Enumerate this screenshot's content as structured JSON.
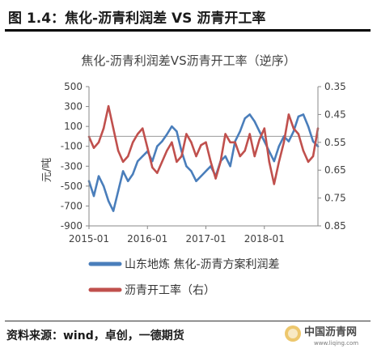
{
  "header": {
    "title": "图 1.4：焦化-沥青利润差 VS 沥青开工率"
  },
  "chart_data": {
    "type": "line",
    "title": "焦化-沥青利润差VS沥青开工率（逆序）",
    "ylabel": "元/吨",
    "ylim": [
      -900,
      500
    ],
    "yticks": [
      "500",
      "300",
      "100",
      "-100",
      "-300",
      "-500",
      "-700",
      "-900"
    ],
    "y2lim": [
      0.35,
      0.85
    ],
    "y2_inverted": true,
    "y2ticks": [
      "0.35",
      "0.45",
      "0.55",
      "0.65",
      "0.75",
      "0.85"
    ],
    "xlim": [
      "2015-01",
      "2018-12"
    ],
    "xticks": [
      "2015-01",
      "2016-01",
      "2017-01",
      "2018-01"
    ],
    "legend_position": "bottom",
    "series": [
      {
        "name": "山东地炼 焦化-沥青方案利润差",
        "axis": "left",
        "color": "#4a7ebb",
        "x": [
          "2015-01",
          "2015-02",
          "2015-03",
          "2015-04",
          "2015-05",
          "2015-06",
          "2015-07",
          "2015-08",
          "2015-09",
          "2015-10",
          "2015-11",
          "2015-12",
          "2016-01",
          "2016-02",
          "2016-03",
          "2016-04",
          "2016-05",
          "2016-06",
          "2016-07",
          "2016-08",
          "2016-09",
          "2016-10",
          "2016-11",
          "2016-12",
          "2017-01",
          "2017-02",
          "2017-03",
          "2017-04",
          "2017-05",
          "2017-06",
          "2017-07",
          "2017-08",
          "2017-09",
          "2017-10",
          "2017-11",
          "2017-12",
          "2018-01",
          "2018-02",
          "2018-03",
          "2018-04",
          "2018-05",
          "2018-06",
          "2018-07",
          "2018-08",
          "2018-09",
          "2018-10",
          "2018-11",
          "2018-12"
        ],
        "values": [
          -450,
          -600,
          -400,
          -500,
          -650,
          -750,
          -550,
          -350,
          -450,
          -380,
          -250,
          -200,
          -150,
          -250,
          -100,
          -50,
          20,
          100,
          50,
          -150,
          -300,
          -350,
          -450,
          -400,
          -350,
          -300,
          -400,
          -250,
          -200,
          -300,
          -50,
          50,
          180,
          220,
          150,
          50,
          -50,
          -150,
          -250,
          -100,
          0,
          -50,
          50,
          200,
          220,
          100,
          -50,
          -100
        ]
      },
      {
        "name": "沥青开工率（右）",
        "axis": "right",
        "color": "#c0504d",
        "x": [
          "2015-01",
          "2015-02",
          "2015-03",
          "2015-04",
          "2015-05",
          "2015-06",
          "2015-07",
          "2015-08",
          "2015-09",
          "2015-10",
          "2015-11",
          "2015-12",
          "2016-01",
          "2016-02",
          "2016-03",
          "2016-04",
          "2016-05",
          "2016-06",
          "2016-07",
          "2016-08",
          "2016-09",
          "2016-10",
          "2016-11",
          "2016-12",
          "2017-01",
          "2017-02",
          "2017-03",
          "2017-04",
          "2017-05",
          "2017-06",
          "2017-07",
          "2017-08",
          "2017-09",
          "2017-10",
          "2017-11",
          "2017-12",
          "2018-01",
          "2018-02",
          "2018-03",
          "2018-04",
          "2018-05",
          "2018-06",
          "2018-07",
          "2018-08",
          "2018-09",
          "2018-10",
          "2018-11",
          "2018-12"
        ],
        "values": [
          0.53,
          0.57,
          0.55,
          0.5,
          0.42,
          0.5,
          0.58,
          0.62,
          0.6,
          0.55,
          0.52,
          0.5,
          0.57,
          0.64,
          0.66,
          0.62,
          0.58,
          0.55,
          0.62,
          0.6,
          0.52,
          0.55,
          0.6,
          0.56,
          0.55,
          0.62,
          0.68,
          0.62,
          0.52,
          0.55,
          0.55,
          0.6,
          0.58,
          0.52,
          0.6,
          0.54,
          0.5,
          0.62,
          0.7,
          0.62,
          0.55,
          0.45,
          0.5,
          0.52,
          0.58,
          0.62,
          0.6,
          0.5
        ]
      }
    ]
  },
  "footer": {
    "source": "资料来源：wind，卓创，一德期货"
  },
  "watermark": {
    "text": "中国沥青网",
    "sub": "www.liqing.com"
  }
}
